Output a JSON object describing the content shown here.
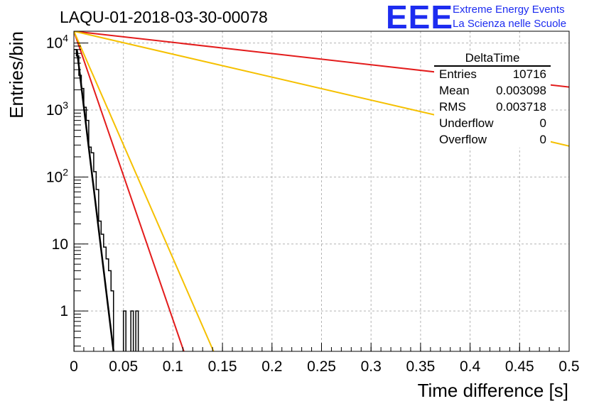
{
  "chart_data": {
    "type": "line",
    "title": "LAQU-01-2018-03-30-00078",
    "xlabel": "Time difference [s]",
    "ylabel": "Entries/bin",
    "xlim": [
      0,
      0.5
    ],
    "ylim": [
      0.25,
      15000
    ],
    "yscale": "log",
    "grid": true,
    "x_ticks": [
      "0",
      "0.05",
      "0.1",
      "0.15",
      "0.2",
      "0.25",
      "0.3",
      "0.35",
      "0.4",
      "0.45",
      "0.5"
    ],
    "y_ticks": [
      {
        "value": 1,
        "label": "1"
      },
      {
        "value": 10,
        "label": "10"
      },
      {
        "value": 100,
        "base": "10",
        "exp": "2"
      },
      {
        "value": 1000,
        "base": "10",
        "exp": "3"
      },
      {
        "value": 10000,
        "base": "10",
        "exp": "4"
      }
    ],
    "histogram": {
      "name": "DeltaTime",
      "bin_width": 0.0025,
      "bins_x": [
        0,
        0.0025,
        0.005,
        0.0075,
        0.01,
        0.0125,
        0.015,
        0.0175,
        0.02,
        0.0225,
        0.025,
        0.0275,
        0.03,
        0.0325,
        0.035,
        0.0375,
        0.04,
        0.0425,
        0.045,
        0.0475,
        0.05,
        0.0525,
        0.055,
        0.0575,
        0.06,
        0.0625,
        0.065,
        0.0675,
        0.07
      ],
      "counts": [
        8000,
        6400,
        3300,
        2100,
        1100,
        700,
        280,
        230,
        120,
        65,
        22,
        14,
        9,
        6,
        4,
        2,
        0,
        0,
        0,
        0,
        1,
        0,
        0,
        1,
        0,
        1,
        0,
        0,
        0
      ],
      "color": "#000000"
    },
    "series": [
      {
        "name": "fit",
        "color": "#000000",
        "x": [
          0.003,
          0.04
        ],
        "y": [
          8000,
          0.25
        ]
      },
      {
        "name": "red-steep",
        "color": "#e31c1c",
        "x": [
          0,
          0.111
        ],
        "y": [
          15000,
          0.25
        ]
      },
      {
        "name": "yellow-steep",
        "color": "#f5c000",
        "x": [
          0,
          0.141
        ],
        "y": [
          15000,
          0.25
        ]
      },
      {
        "name": "red-shallow",
        "color": "#e31c1c",
        "x": [
          0,
          0.5
        ],
        "y": [
          15000,
          2200
        ]
      },
      {
        "name": "yellow-shallow",
        "color": "#f5c000",
        "x": [
          0,
          0.5
        ],
        "y": [
          15000,
          290
        ]
      }
    ]
  },
  "stats": {
    "title": "DeltaTime",
    "rows": [
      {
        "label": "Entries",
        "value": "10716"
      },
      {
        "label": "Mean",
        "value": "0.003098"
      },
      {
        "label": "RMS",
        "value": "0.003718"
      },
      {
        "label": "Underflow",
        "value": "0"
      },
      {
        "label": "Overflow",
        "value": "0"
      }
    ]
  },
  "logo": {
    "big": "EEE",
    "line1": "Extreme Energy Events",
    "line2": "La Scienza nelle Scuole",
    "color": "#1d2cf0"
  }
}
